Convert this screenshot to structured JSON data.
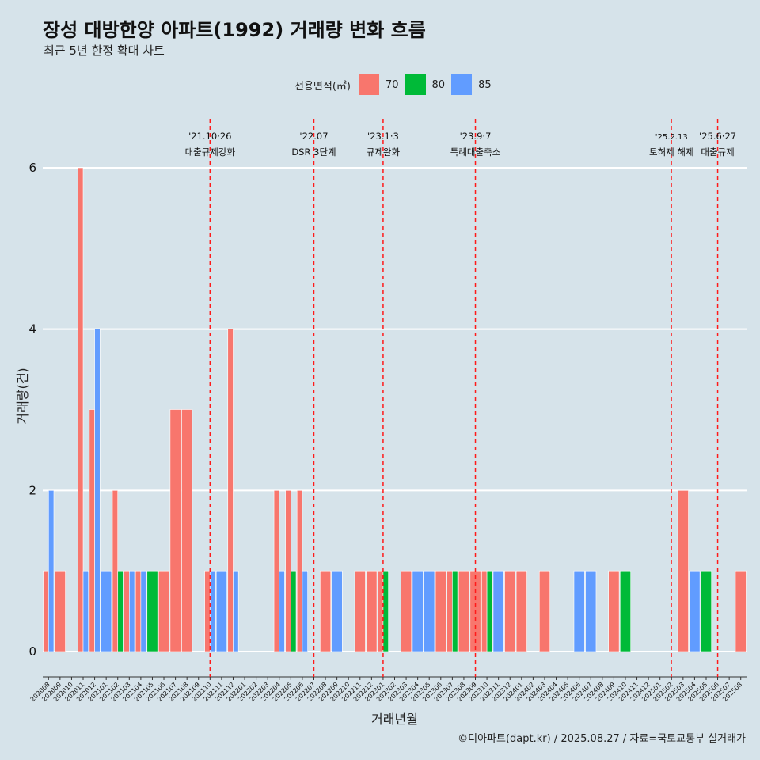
{
  "header": {
    "title": "장성 대방한양 아파트(1992) 거래량 변화 흐름",
    "subtitle": "최근 5년 한정 확대 차트"
  },
  "legend": {
    "title": "전용면적(㎡)",
    "items": [
      {
        "label": "70",
        "color": "#F8766D"
      },
      {
        "label": "80",
        "color": "#00BA38"
      },
      {
        "label": "85",
        "color": "#619CFF"
      }
    ]
  },
  "caption": "©디아파트(dapt.kr) / 2025.08.27 / 자료=국토교통부 실거래가",
  "chart_data": {
    "type": "bar",
    "xlabel": "거래년월",
    "ylabel": "거래량(건)",
    "ylim": [
      0,
      6.3
    ],
    "yticks": [
      0,
      2,
      4,
      6
    ],
    "grid": true,
    "legend_position": "top",
    "categories": [
      "202008",
      "202009",
      "202010",
      "202011",
      "202012",
      "202101",
      "202102",
      "202103",
      "202104",
      "202105",
      "202106",
      "202107",
      "202108",
      "202109",
      "202110",
      "202111",
      "202112",
      "202201",
      "202202",
      "202203",
      "202204",
      "202205",
      "202206",
      "202207",
      "202208",
      "202209",
      "202210",
      "202211",
      "202212",
      "202301",
      "202302",
      "202303",
      "202304",
      "202305",
      "202306",
      "202307",
      "202308",
      "202309",
      "202310",
      "202311",
      "202312",
      "202401",
      "202402",
      "202403",
      "202404",
      "202405",
      "202406",
      "202407",
      "202408",
      "202409",
      "202410",
      "202411",
      "202412",
      "202501",
      "202502",
      "202503",
      "202504",
      "202505",
      "202506",
      "202507",
      "202508"
    ],
    "series": [
      {
        "name": "70",
        "color": "#F8766D",
        "values": [
          1,
          1,
          0,
          6,
          3,
          0,
          2,
          1,
          1,
          0,
          1,
          3,
          3,
          0,
          1,
          0,
          4,
          0,
          0,
          0,
          2,
          2,
          2,
          0,
          1,
          0,
          0,
          1,
          1,
          1,
          0,
          1,
          0,
          0,
          1,
          1,
          1,
          1,
          1,
          0,
          1,
          1,
          0,
          1,
          0,
          0,
          0,
          0,
          0,
          1,
          0,
          0,
          0,
          0,
          0,
          2,
          0,
          0,
          0,
          0,
          1
        ]
      },
      {
        "name": "80",
        "color": "#00BA38",
        "values": [
          0,
          0,
          0,
          0,
          0,
          0,
          1,
          0,
          0,
          1,
          0,
          0,
          0,
          0,
          0,
          0,
          0,
          0,
          0,
          0,
          0,
          1,
          0,
          0,
          0,
          0,
          0,
          0,
          0,
          1,
          0,
          0,
          0,
          0,
          0,
          1,
          0,
          0,
          1,
          0,
          0,
          0,
          0,
          0,
          0,
          0,
          0,
          0,
          0,
          0,
          1,
          0,
          0,
          0,
          0,
          0,
          0,
          1,
          0,
          0,
          0
        ]
      },
      {
        "name": "85",
        "color": "#619CFF",
        "values": [
          2,
          0,
          0,
          1,
          4,
          1,
          0,
          1,
          1,
          0,
          0,
          0,
          0,
          0,
          1,
          1,
          1,
          0,
          0,
          0,
          1,
          0,
          1,
          0,
          0,
          1,
          0,
          0,
          0,
          0,
          0,
          0,
          1,
          1,
          0,
          0,
          0,
          0,
          0,
          1,
          0,
          0,
          0,
          0,
          0,
          0,
          1,
          1,
          0,
          0,
          0,
          0,
          0,
          0,
          0,
          0,
          1,
          0,
          0,
          0,
          0
        ]
      }
    ],
    "annotations": [
      {
        "month": "202110",
        "line1": "'21.10·26",
        "line2": "대출규제강화"
      },
      {
        "month": "202207",
        "line1": "'22.07",
        "line2": "DSR 3단계"
      },
      {
        "month": "202301",
        "line1": "'23.1·3",
        "line2": "규제완화"
      },
      {
        "month": "202309",
        "line1": "'23.9·7",
        "line2": "특례대출축소"
      },
      {
        "month": "202502",
        "line1": "'25.2.13",
        "line2": "토허제 해제"
      },
      {
        "month": "202506",
        "line1": "'25.6·27",
        "line2": "대출규제"
      }
    ]
  }
}
